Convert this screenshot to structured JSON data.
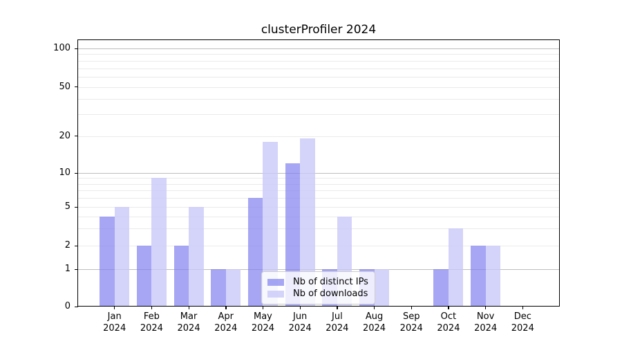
{
  "figure": {
    "title": "clusterProfiler 2024"
  },
  "colors": {
    "distinct_ips_bar": "#8080f0",
    "distinct_ips_alpha": 0.7,
    "downloads_bar": "#c8c8f8",
    "downloads_alpha": 0.78,
    "grid_major": "#bdbdbd",
    "grid_minor": "#eaeaea",
    "axis": "#000000"
  },
  "chart_data": {
    "type": "bar",
    "title": "clusterProfiler 2024",
    "categories": [
      "Jan 2024",
      "Feb 2024",
      "Mar 2024",
      "Apr 2024",
      "May 2024",
      "Jun 2024",
      "Jul 2024",
      "Aug 2024",
      "Sep 2024",
      "Oct 2024",
      "Nov 2024",
      "Dec 2024"
    ],
    "series": [
      {
        "name": "Nb of distinct IPs",
        "values": [
          4,
          2,
          2,
          1,
          6,
          12,
          1,
          1,
          0,
          1,
          2,
          0
        ]
      },
      {
        "name": "Nb of downloads",
        "values": [
          5,
          9,
          5,
          1,
          18,
          19,
          4,
          1,
          0,
          3,
          2,
          0
        ]
      }
    ],
    "xlabel": "",
    "ylabel": "",
    "yticks": [
      100,
      50,
      20,
      10,
      5,
      2,
      1,
      0
    ],
    "yscale": "log-like (0,1,2,5,10,20,50,100)",
    "ylim": [
      0,
      120
    ],
    "grid": true,
    "legend_position": "lower center inside plot"
  }
}
